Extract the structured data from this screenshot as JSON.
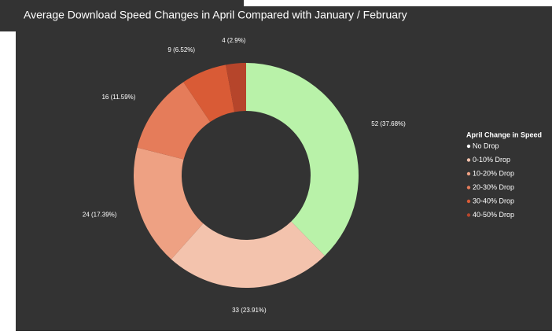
{
  "chart_data": {
    "type": "pie",
    "donut": true,
    "title": "Average Download Speed Changes in April Compared with January / February",
    "legend_title": "April Change in Speed",
    "legend": "right",
    "categories": [
      "No Drop",
      "0-10% Drop",
      "10-20% Drop",
      "20-30% Drop",
      "30-40% Drop",
      "40-50% Drop"
    ],
    "values": [
      52,
      33,
      24,
      16,
      9,
      4
    ],
    "value_labels": [
      "52 (37.68%)",
      "33 (23.91%)",
      "24 (17.39%)",
      "16 (11.59%)",
      "9 (6.52%)",
      "4 (2.9%)"
    ],
    "colors": [
      "#b9f2a9",
      "#f3c3ad",
      "#eea183",
      "#e57c5a",
      "#d95b36",
      "#b6452b"
    ]
  }
}
